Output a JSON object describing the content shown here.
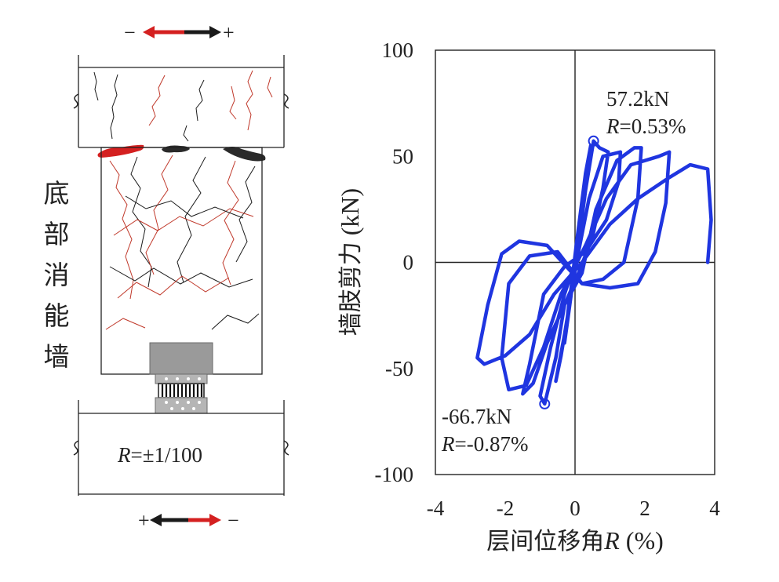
{
  "specimen": {
    "loading_top": {
      "minus": "−",
      "plus": "+"
    },
    "loading_bottom": {
      "minus": "−",
      "plus": "+"
    },
    "wall_label": [
      "底",
      "部",
      "消",
      "能",
      "墙"
    ],
    "drift_label": {
      "R": "R",
      "rest": "=±1/100"
    },
    "colors": {
      "red": "#d42020",
      "black": "#1a1a1a",
      "crack_red": "#c0392b",
      "device_gray": "#9a9a9a"
    }
  },
  "chart_data": {
    "type": "line",
    "xlabel": "层间位移角R (%)",
    "xlabel_parts": {
      "cjk": "层间位移角",
      "italic": "R",
      "rest": " (%)"
    },
    "ylabel": "墙肢剪力 (kN)",
    "ylabel_parts": {
      "cjk": "墙肢剪力",
      "rest": " (kN)"
    },
    "xlim": [
      -4,
      4
    ],
    "ylim": [
      -100,
      100
    ],
    "x_ticks": [
      "-4",
      "-2",
      "0",
      "2",
      "4"
    ],
    "y_ticks": [
      "100",
      "50",
      "0",
      "-50",
      "-100"
    ],
    "x_tick_values": [
      -4,
      -2,
      0,
      2,
      4
    ],
    "y_tick_values": [
      100,
      50,
      0,
      -50,
      -100
    ],
    "series": [
      {
        "color": "#1f35e0",
        "points": [
          [
            0,
            0
          ],
          [
            0.12,
            16
          ],
          [
            0.22,
            28
          ],
          [
            0.3,
            36
          ],
          [
            0.2,
            22
          ],
          [
            0.05,
            4
          ],
          [
            -0.1,
            -14
          ],
          [
            -0.2,
            -26
          ],
          [
            -0.3,
            -38
          ],
          [
            -0.18,
            -20
          ],
          [
            0,
            -2
          ],
          [
            0.2,
            24
          ],
          [
            0.38,
            46
          ],
          [
            0.45,
            55
          ],
          [
            0.3,
            42
          ],
          [
            0.05,
            10
          ],
          [
            -0.2,
            -24
          ],
          [
            -0.4,
            -44
          ],
          [
            -0.55,
            -56
          ],
          [
            -0.3,
            -34
          ],
          [
            0,
            -4
          ],
          [
            0.3,
            34
          ],
          [
            0.53,
            57.2
          ],
          [
            0.7,
            54
          ],
          [
            0.95,
            52
          ],
          [
            0.8,
            35
          ],
          [
            0.5,
            12
          ],
          [
            0.1,
            -5
          ],
          [
            -0.3,
            -20
          ],
          [
            -0.55,
            -45
          ],
          [
            -0.87,
            -66.7
          ],
          [
            -1.0,
            -63
          ],
          [
            -0.7,
            -40
          ],
          [
            -0.3,
            -15
          ],
          [
            0.1,
            5
          ],
          [
            0.4,
            30
          ],
          [
            0.8,
            50
          ],
          [
            1.3,
            52
          ],
          [
            1.25,
            38
          ],
          [
            0.9,
            20
          ],
          [
            0.3,
            5
          ],
          [
            -0.3,
            -2
          ],
          [
            -0.9,
            -15
          ],
          [
            -1.3,
            -48
          ],
          [
            -1.5,
            -62
          ],
          [
            -1.2,
            -57
          ],
          [
            -0.8,
            -38
          ],
          [
            -0.3,
            -20
          ],
          [
            0.2,
            -5
          ],
          [
            0.6,
            25
          ],
          [
            1.2,
            48
          ],
          [
            1.7,
            54
          ],
          [
            1.9,
            54
          ],
          [
            1.8,
            30
          ],
          [
            1.4,
            0
          ],
          [
            0.8,
            -8
          ],
          [
            0.2,
            -10
          ],
          [
            -0.5,
            5
          ],
          [
            -1.3,
            3
          ],
          [
            -1.9,
            -10
          ],
          [
            -2.1,
            -45
          ],
          [
            -1.9,
            -60
          ],
          [
            -1.4,
            -58
          ],
          [
            -0.9,
            -40
          ],
          [
            -0.4,
            -15
          ],
          [
            0.3,
            8
          ],
          [
            0.9,
            30
          ],
          [
            1.6,
            46
          ],
          [
            2.4,
            50
          ],
          [
            2.7,
            52
          ],
          [
            2.6,
            28
          ],
          [
            2.3,
            5
          ],
          [
            1.8,
            -10
          ],
          [
            1.0,
            -12
          ],
          [
            0.2,
            -10
          ],
          [
            -0.8,
            8
          ],
          [
            -1.6,
            10
          ],
          [
            -2.1,
            4
          ],
          [
            -2.5,
            -20
          ],
          [
            -2.8,
            -45
          ],
          [
            -2.6,
            -48
          ],
          [
            -2.0,
            -44
          ],
          [
            -1.3,
            -34
          ],
          [
            -0.6,
            -15
          ],
          [
            0.2,
            0
          ],
          [
            1.0,
            18
          ],
          [
            1.8,
            30
          ],
          [
            2.7,
            40
          ],
          [
            3.3,
            46
          ],
          [
            3.8,
            44
          ],
          [
            3.9,
            20
          ],
          [
            3.8,
            0
          ]
        ]
      }
    ],
    "annotations": [
      {
        "value": "57.2kN",
        "R_label": "R",
        "R_rest": "=0.53%",
        "x": 0.53,
        "y": 57.2
      },
      {
        "value": "-66.7kN",
        "R_label": "R",
        "R_rest": "=-0.87%",
        "x": -0.87,
        "y": -66.7
      }
    ],
    "grid": false,
    "legend": "none"
  }
}
